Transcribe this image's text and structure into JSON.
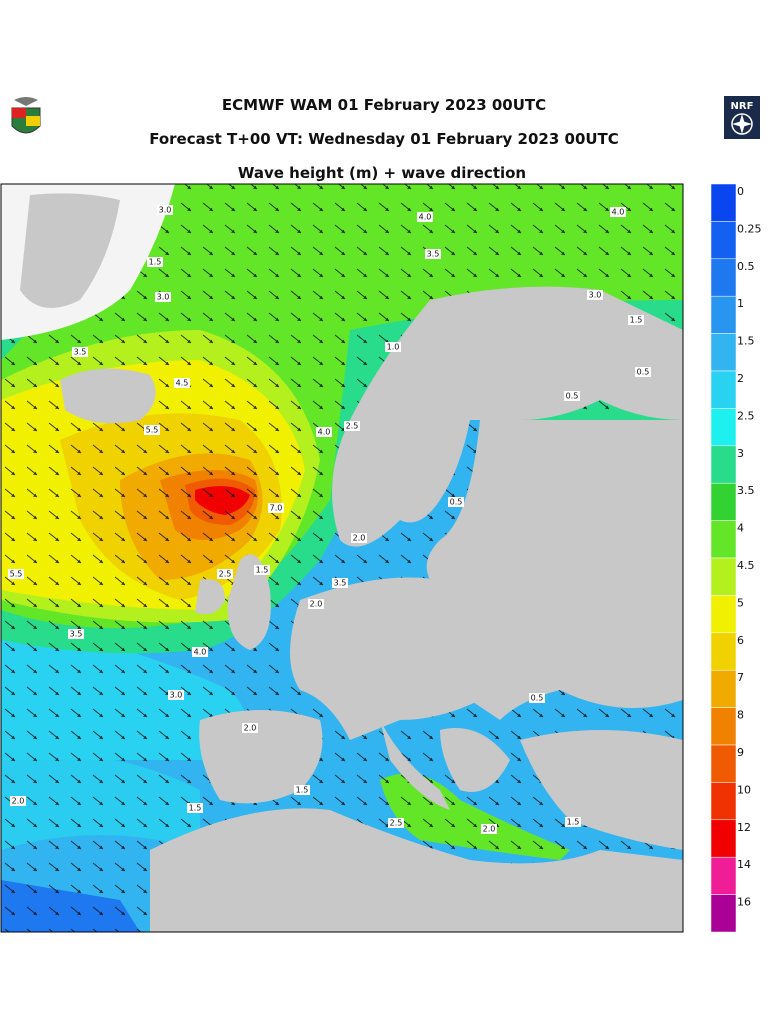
{
  "header": {
    "lines": [
      "ECMWF WAM 01 February 2023 00UTC",
      "Forecast T+00 VT: Wednesday 01 February 2023 00UTC",
      "Wave height (m) + wave direction"
    ],
    "logo_right": "NRF"
  },
  "colorbar": [
    {
      "label": "0",
      "color": "#0a46f0"
    },
    {
      "label": "0.25",
      "color": "#1460f0"
    },
    {
      "label": "0.5",
      "color": "#1e78f0"
    },
    {
      "label": "1",
      "color": "#2896f0"
    },
    {
      "label": "1.5",
      "color": "#32b4f0"
    },
    {
      "label": "2",
      "color": "#28d2f0"
    },
    {
      "label": "2.5",
      "color": "#1ef0f0"
    },
    {
      "label": "3",
      "color": "#28dc8c"
    },
    {
      "label": "3.5",
      "color": "#32d232"
    },
    {
      "label": "4",
      "color": "#64e628"
    },
    {
      "label": "4.5",
      "color": "#b4f01e"
    },
    {
      "label": "5",
      "color": "#f0f000"
    },
    {
      "label": "6",
      "color": "#f0d200"
    },
    {
      "label": "7",
      "color": "#f0aa00"
    },
    {
      "label": "8",
      "color": "#f08200"
    },
    {
      "label": "9",
      "color": "#f05a00"
    },
    {
      "label": "10",
      "color": "#f03200"
    },
    {
      "label": "12",
      "color": "#f00000"
    },
    {
      "label": "14",
      "color": "#f01e96"
    },
    {
      "label": "16",
      "color": "#aa0096"
    }
  ],
  "contour_labels": [
    "3.0",
    "1.5",
    "3.0",
    "3.5",
    "4.5",
    "5.5",
    "4.0",
    "3.5",
    "4.0",
    "3.0",
    "1.5",
    "0.5",
    "0.5",
    "1.0",
    "4.0",
    "2.5",
    "7.0",
    "2.0",
    "0.5",
    "5.5",
    "3.5",
    "4.0",
    "3.0",
    "2.0",
    "2.0",
    "1.5",
    "1.5",
    "2.5",
    "2.0",
    "0.5",
    "1.5",
    "2.5",
    "1.5",
    "3.5",
    "2.0"
  ]
}
